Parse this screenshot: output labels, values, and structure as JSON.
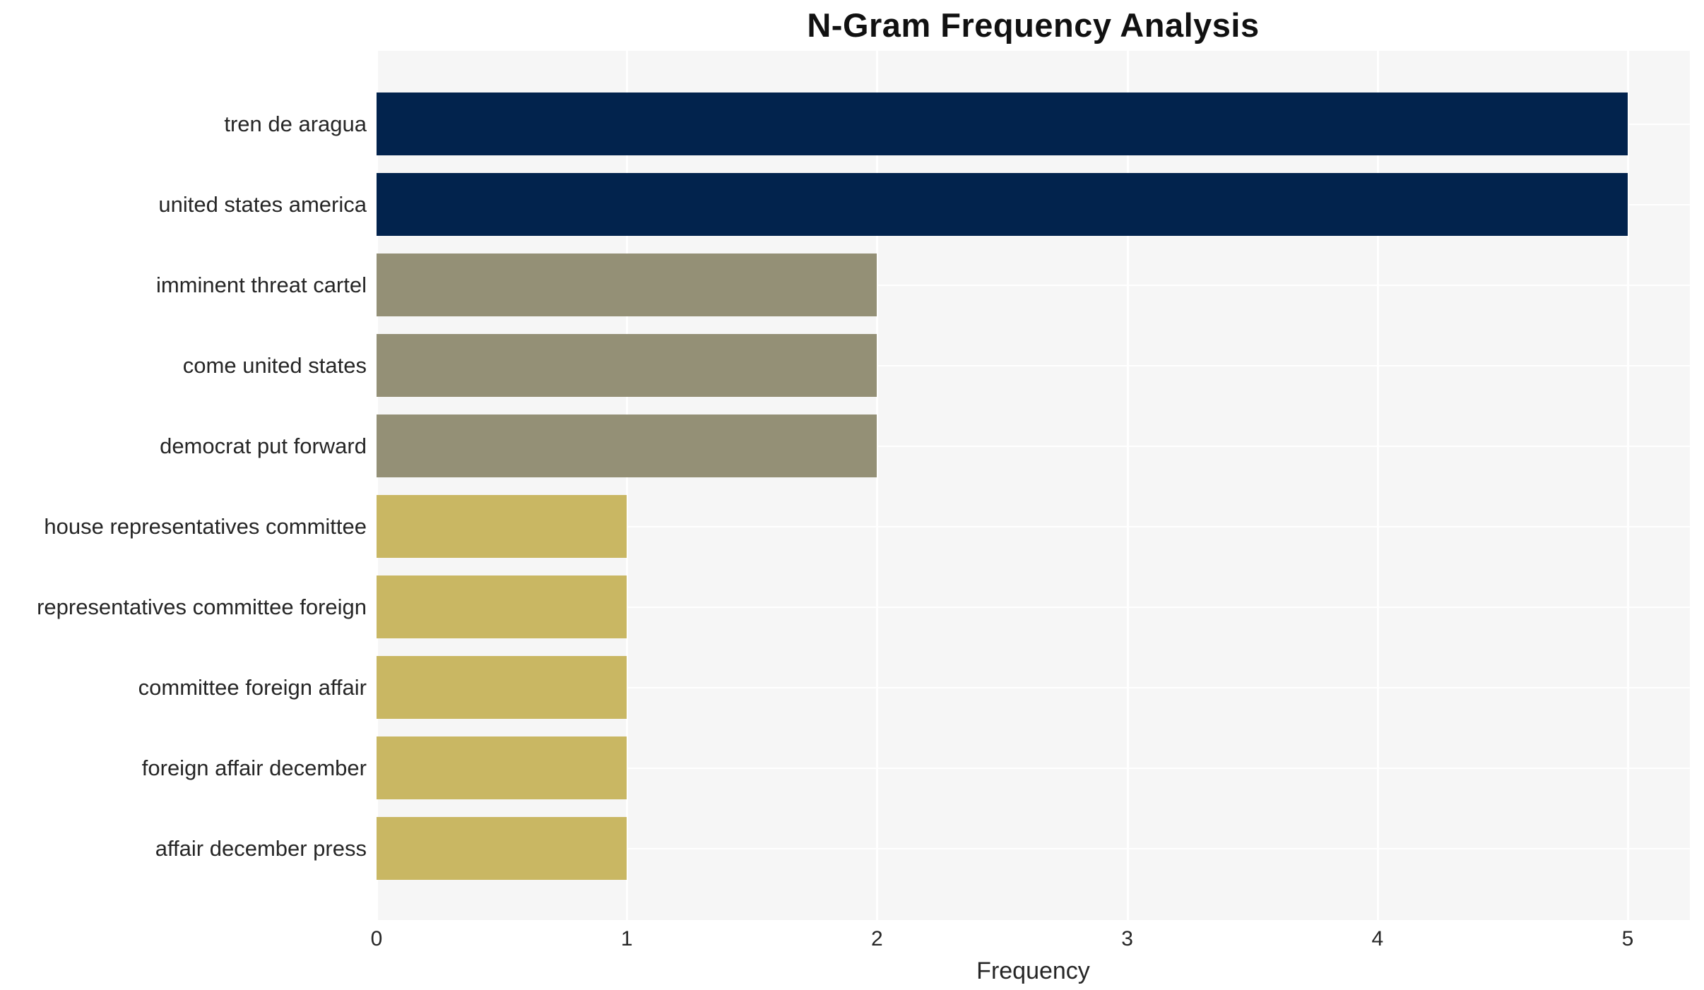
{
  "chart_data": {
    "type": "bar",
    "orientation": "horizontal",
    "title": "N-Gram Frequency Analysis",
    "xlabel": "Frequency",
    "ylabel": "",
    "categories": [
      "tren de aragua",
      "united states america",
      "imminent threat cartel",
      "come united states",
      "democrat put forward",
      "house representatives committee",
      "representatives committee foreign",
      "committee foreign affair",
      "foreign affair december",
      "affair december press"
    ],
    "values": [
      5,
      5,
      2,
      2,
      2,
      1,
      1,
      1,
      1,
      1
    ],
    "bar_colors": [
      "#02234d",
      "#02234d",
      "#949076",
      "#949076",
      "#949076",
      "#c9b763",
      "#c9b763",
      "#c9b763",
      "#c9b763",
      "#c9b763"
    ],
    "xticks": [
      "0",
      "1",
      "2",
      "3",
      "4",
      "5"
    ],
    "xlim": [
      0,
      5.25
    ],
    "grid": true,
    "legend": false,
    "colors": {
      "plot_background": "#f6f6f6",
      "grid_line": "#ffffff",
      "text": "#262626",
      "title": "#111111",
      "bar_high": "#02234d",
      "bar_mid": "#949076",
      "bar_low": "#c9b763"
    }
  }
}
